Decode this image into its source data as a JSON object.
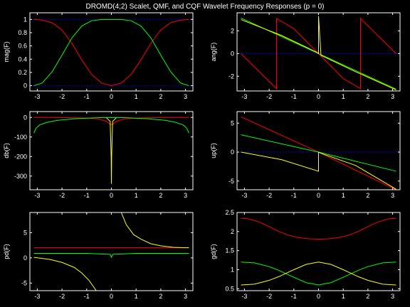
{
  "figure": {
    "title": "DROMD(4;2) Scalet, QMF, and CQF Wavelet Frequency Responses (p = 0)",
    "background": "#000000",
    "axis_color": "#ffffff",
    "colors": {
      "scalet": "#ff0000",
      "qmf": "#00ff00",
      "cqf": "#ffff00",
      "reference": "#0000ff"
    }
  },
  "chart_data": [
    {
      "type": "line",
      "ylabel": "mag(F)",
      "xlim": [
        -3.3,
        3.3
      ],
      "ylim": [
        -0.08,
        1.1
      ],
      "xticks": [
        -3,
        -2,
        -1,
        0,
        1,
        2,
        3
      ],
      "yticks": [
        0,
        0.2,
        0.4,
        0.6,
        0.8,
        1
      ],
      "ref_lines": [
        0,
        1
      ],
      "series": [
        {
          "color": "#ff0000",
          "x": [
            -3.14,
            -2.8,
            -2.4,
            -2.0,
            -1.6,
            -1.2,
            -0.8,
            -0.4,
            0,
            0.4,
            0.8,
            1.2,
            1.6,
            2.0,
            2.4,
            2.8,
            3.14
          ],
          "y": [
            1.0,
            0.99,
            0.95,
            0.84,
            0.64,
            0.39,
            0.17,
            0.04,
            0,
            0.04,
            0.17,
            0.39,
            0.64,
            0.84,
            0.95,
            0.99,
            1.0
          ]
        },
        {
          "color": "#00ff00",
          "x": [
            -3.14,
            -2.8,
            -2.4,
            -2.0,
            -1.6,
            -1.2,
            -0.8,
            -0.4,
            0,
            0.4,
            0.8,
            1.2,
            1.6,
            2.0,
            2.4,
            2.8,
            3.14
          ],
          "y": [
            0,
            0.04,
            0.21,
            0.46,
            0.72,
            0.9,
            0.98,
            1.0,
            1.0,
            1.0,
            0.98,
            0.9,
            0.72,
            0.46,
            0.21,
            0.04,
            0
          ]
        }
      ]
    },
    {
      "type": "line",
      "ylabel": "ang(F)",
      "xlim": [
        -3.3,
        3.3
      ],
      "ylim": [
        -3.3,
        3.6
      ],
      "xticks": [
        -3,
        -2,
        -1,
        0,
        1,
        2,
        3
      ],
      "yticks": [
        -2,
        0,
        2
      ],
      "ref_lines": [
        0
      ],
      "series": [
        {
          "color": "#ff0000",
          "x": [
            -3.14,
            -1.7,
            -1.7,
            -1.0,
            0,
            1.0,
            1.7,
            1.7,
            3.14
          ],
          "y": [
            0,
            -3.1,
            3.1,
            2.2,
            0,
            -2.2,
            -3.1,
            3.1,
            0
          ]
        },
        {
          "color": "#00ff00",
          "x": [
            -3.14,
            0,
            3.14
          ],
          "y": [
            3.14,
            0,
            -3.14
          ]
        },
        {
          "color": "#ffff00",
          "x": [
            -3.14,
            -1.5,
            -0.1,
            0,
            0,
            0.1,
            1.5,
            3.14
          ],
          "y": [
            3.0,
            1.6,
            0.15,
            0.0,
            3.3,
            -0.15,
            -1.6,
            -3.2
          ]
        }
      ]
    },
    {
      "type": "line",
      "ylabel": "db(F)",
      "xlim": [
        -3.3,
        3.3
      ],
      "ylim": [
        -370,
        30
      ],
      "xticks": [
        -3,
        -2,
        -1,
        0,
        1,
        2,
        3
      ],
      "yticks": [
        -300,
        -200,
        -100,
        0
      ],
      "ref_lines": [],
      "series": [
        {
          "color": "#ff0000",
          "x": [
            -3.14,
            -2,
            -1,
            -0.5,
            -0.2,
            -0.05,
            0,
            0.05,
            0.2,
            0.5,
            1,
            2,
            3.14
          ],
          "y": [
            0,
            -0.5,
            -3,
            -8,
            -20,
            -35,
            -38,
            -35,
            -20,
            -8,
            -3,
            -0.5,
            0
          ]
        },
        {
          "color": "#00ff00",
          "x": [
            -3.14,
            -3.05,
            -2.9,
            -2.6,
            -2.2,
            -1.5,
            -0.5,
            0,
            0.5,
            1.5,
            2.2,
            2.6,
            2.9,
            3.05,
            3.14
          ],
          "y": [
            -80,
            -55,
            -38,
            -25,
            -15,
            -7,
            -1,
            0,
            -1,
            -7,
            -15,
            -25,
            -38,
            -55,
            -80
          ]
        },
        {
          "color": "#ffff00",
          "x": [
            -0.2,
            -0.05,
            -0.01,
            0,
            0.01,
            0.05,
            0.2
          ],
          "y": [
            -2,
            -20,
            -200,
            -340,
            -200,
            -20,
            -2
          ]
        }
      ]
    },
    {
      "type": "line",
      "ylabel": "up(F)",
      "xlim": [
        -3.3,
        3.3
      ],
      "ylim": [
        -6.5,
        7
      ],
      "xticks": [
        -3,
        -2,
        -1,
        0,
        1,
        2,
        3
      ],
      "yticks": [
        -5,
        0,
        5
      ],
      "ref_lines": [
        0
      ],
      "series": [
        {
          "color": "#ff0000",
          "x": [
            -3.14,
            0,
            3.14
          ],
          "y": [
            6.1,
            0,
            -6.5
          ]
        },
        {
          "color": "#00ff00",
          "x": [
            -3.14,
            0,
            3.14
          ],
          "y": [
            3.0,
            0,
            -3.3
          ]
        },
        {
          "color": "#ffff00",
          "x": [
            -3.14,
            -1.5,
            0,
            0,
            0.1,
            1.5,
            3.14
          ],
          "y": [
            0,
            -1.3,
            -3.3,
            0,
            -0.2,
            -2.3,
            -6.4
          ]
        }
      ]
    },
    {
      "type": "line",
      "ylabel": "pd(F)",
      "xlim": [
        -3.3,
        3.3
      ],
      "ylim": [
        -6.5,
        9
      ],
      "xticks": [
        -3,
        -2,
        -1,
        0,
        1,
        2,
        3
      ],
      "yticks": [
        -5,
        0,
        5
      ],
      "ref_lines": [],
      "series": [
        {
          "color": "#ff0000",
          "x": [
            -3.14,
            3.14
          ],
          "y": [
            2.0,
            2.0
          ]
        },
        {
          "color": "#00ff00",
          "x": [
            -3.14,
            -1,
            -0.05,
            0,
            0.05,
            1,
            3.14
          ],
          "y": [
            0.9,
            0.9,
            0.7,
            0.1,
            0.7,
            0.9,
            0.9
          ]
        },
        {
          "color": "#ffff00",
          "x": [
            -3.14,
            -2.5,
            -2,
            -1.5,
            -1.2,
            -0.9,
            -0.6
          ],
          "y": [
            0.1,
            -0.3,
            -0.9,
            -1.9,
            -3.0,
            -4.5,
            -6.6
          ]
        },
        {
          "color": "#ffff00",
          "x": [
            0.4,
            0.6,
            0.9,
            1.2,
            1.6,
            2,
            2.5,
            3.14
          ],
          "y": [
            9.0,
            6.6,
            4.6,
            3.7,
            2.8,
            2.4,
            2.1,
            2.0
          ]
        }
      ]
    },
    {
      "type": "line",
      "ylabel": "gd(F)",
      "xlim": [
        -3.3,
        3.3
      ],
      "ylim": [
        0.45,
        2.5
      ],
      "xticks": [
        -3,
        -2,
        -1,
        0,
        1,
        2,
        3
      ],
      "yticks": [
        0.5,
        1,
        1.5,
        2,
        2.5
      ],
      "ref_lines": [],
      "series": [
        {
          "color": "#ff0000",
          "x": [
            -3.14,
            -2.8,
            -2.4,
            -2.0,
            -1.6,
            -1.2,
            -0.8,
            -0.4,
            0,
            0.4,
            0.8,
            1.2,
            1.6,
            2.0,
            2.4,
            2.8,
            3.14
          ],
          "y": [
            2.35,
            2.33,
            2.25,
            2.13,
            2.0,
            1.9,
            1.84,
            1.81,
            1.8,
            1.81,
            1.84,
            1.9,
            2.0,
            2.13,
            2.25,
            2.33,
            2.35
          ]
        },
        {
          "color": "#00ff00",
          "x": [
            -3.14,
            -2.6,
            -2.0,
            -1.6,
            -1.0,
            -0.5,
            0,
            0.5,
            1.0,
            1.6,
            2.0,
            2.6,
            3.14
          ],
          "y": [
            1.2,
            1.18,
            1.08,
            0.98,
            0.8,
            0.66,
            0.6,
            0.66,
            0.8,
            0.98,
            1.08,
            1.18,
            1.2
          ]
        },
        {
          "color": "#ffff00",
          "x": [
            -3.14,
            -2.6,
            -2.0,
            -1.6,
            -1.0,
            -0.5,
            0,
            0.5,
            1.0,
            1.6,
            2.0,
            2.6,
            3.14
          ],
          "y": [
            0.6,
            0.62,
            0.72,
            0.82,
            1.0,
            1.14,
            1.2,
            1.14,
            1.0,
            0.82,
            0.72,
            0.62,
            0.6
          ]
        }
      ]
    }
  ]
}
